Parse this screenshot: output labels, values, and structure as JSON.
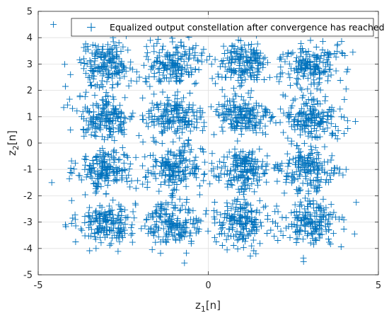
{
  "chart_data": {
    "type": "scatter",
    "marker": "+",
    "color": "#0072BD",
    "title": "",
    "xlabel": {
      "main": "z",
      "sub": "1",
      "suffix": "[n]"
    },
    "ylabel": {
      "main": "z",
      "sub": "2",
      "suffix": "[n]"
    },
    "xlim": [
      -5,
      5
    ],
    "ylim": [
      -5,
      5
    ],
    "xticks": [
      -5,
      0,
      5
    ],
    "yticks": [
      -5,
      -4,
      -3,
      -2,
      -1,
      0,
      1,
      2,
      3,
      4,
      5
    ],
    "grid": true,
    "legend_position": "top-right",
    "series": [
      {
        "name": "Equalized output constellation after convergence has reached",
        "constellation": {
          "type": "16-QAM",
          "levels_x": [
            -3,
            -1,
            1,
            3
          ],
          "levels_y": [
            -3,
            -1,
            1,
            3
          ],
          "cluster_spread": 0.42,
          "points_per_cluster": 170
        },
        "outliers": [
          [
            -4.55,
            4.5
          ],
          [
            -4.6,
            -1.5
          ],
          [
            -4.05,
            2.6
          ],
          [
            -4.2,
            -3.1
          ],
          [
            -4.25,
            1.35
          ],
          [
            -0.7,
            -4.55
          ],
          [
            2.8,
            -4.5
          ],
          [
            4.3,
            -3.45
          ],
          [
            4.25,
            3.45
          ],
          [
            4.35,
            -2.25
          ],
          [
            -4.05,
            0.5
          ],
          [
            4.1,
            0.55
          ],
          [
            -3.9,
            -3.75
          ],
          [
            -0.6,
            4.1
          ],
          [
            -3.3,
            -4.0
          ],
          [
            4.05,
            -1.0
          ],
          [
            -4.2,
            2.15
          ],
          [
            4.05,
            2.05
          ],
          [
            1.4,
            -4.2
          ],
          [
            -2.8,
            4.0
          ]
        ]
      }
    ]
  }
}
